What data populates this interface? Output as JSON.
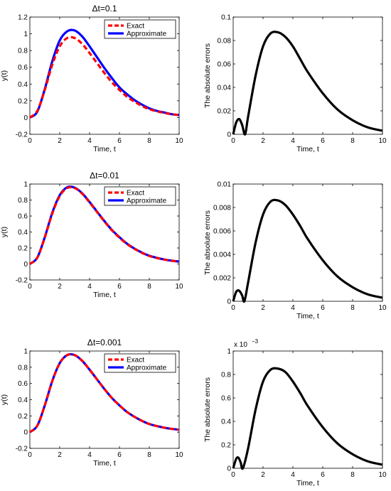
{
  "chart_data": [
    {
      "type": "line",
      "title": "Δt=0.1",
      "xlabel": "Time, t",
      "ylabel": "y(t)",
      "xlim": [
        0,
        10
      ],
      "ylim": [
        -0.2,
        1.2
      ],
      "xticks": [
        "0",
        "2",
        "4",
        "6",
        "8",
        "10"
      ],
      "yticks": [
        "-0.2",
        "0",
        "0.2",
        "0.4",
        "0.6",
        "0.8",
        "1",
        "1.2"
      ],
      "legend": {
        "position": "top-right",
        "entries": [
          "Exact",
          "Approximate"
        ]
      },
      "grid": false,
      "x": [
        0,
        0.5,
        1,
        1.5,
        2,
        2.5,
        3,
        3.5,
        4,
        4.5,
        5,
        5.5,
        6,
        6.5,
        7,
        7.5,
        8,
        8.5,
        9,
        9.5,
        10
      ],
      "series": [
        {
          "name": "Exact",
          "color": "#ff0000",
          "style": "dashed",
          "values": [
            0,
            0.08,
            0.33,
            0.63,
            0.85,
            0.95,
            0.95,
            0.88,
            0.77,
            0.65,
            0.53,
            0.42,
            0.33,
            0.25,
            0.19,
            0.14,
            0.1,
            0.075,
            0.055,
            0.04,
            0.03
          ]
        },
        {
          "name": "Approximate",
          "color": "#0000ff",
          "style": "solid",
          "values": [
            0,
            0.07,
            0.34,
            0.67,
            0.92,
            1.03,
            1.04,
            0.97,
            0.85,
            0.72,
            0.59,
            0.47,
            0.36,
            0.28,
            0.21,
            0.155,
            0.11,
            0.08,
            0.06,
            0.04,
            0.03
          ]
        }
      ]
    },
    {
      "type": "line",
      "title": "",
      "xlabel": "Time, t",
      "ylabel": "The absolute errors",
      "xlim": [
        0,
        10
      ],
      "ylim": [
        0,
        0.1
      ],
      "xticks": [
        "0",
        "2",
        "4",
        "6",
        "8",
        "10"
      ],
      "yticks": [
        "0",
        "0.02",
        "0.04",
        "0.06",
        "0.08",
        "0.1"
      ],
      "grid": false,
      "x": [
        0,
        0.2,
        0.4,
        0.6,
        0.8,
        1,
        1.5,
        2,
        2.5,
        3,
        3.5,
        4,
        4.5,
        5,
        6,
        7,
        8,
        9,
        10
      ],
      "series": [
        {
          "color": "#000000",
          "style": "solid",
          "values": [
            0,
            0.01,
            0.013,
            0.008,
            0,
            0.015,
            0.05,
            0.075,
            0.086,
            0.087,
            0.083,
            0.075,
            0.064,
            0.053,
            0.035,
            0.021,
            0.012,
            0.006,
            0.003
          ]
        }
      ]
    },
    {
      "type": "line",
      "title": "Δt=0.01",
      "xlabel": "Time, t",
      "ylabel": "y(t)",
      "xlim": [
        0,
        10
      ],
      "ylim": [
        -0.2,
        1
      ],
      "xticks": [
        "0",
        "2",
        "4",
        "6",
        "8",
        "10"
      ],
      "yticks": [
        "-0.2",
        "0",
        "0.2",
        "0.4",
        "0.6",
        "0.8",
        "1"
      ],
      "legend": {
        "position": "top-right",
        "entries": [
          "Exact",
          "Approximate"
        ]
      },
      "grid": false,
      "x": [
        0,
        0.5,
        1,
        1.5,
        2,
        2.5,
        3,
        3.5,
        4,
        4.5,
        5,
        5.5,
        6,
        6.5,
        7,
        7.5,
        8,
        8.5,
        9,
        9.5,
        10
      ],
      "series": [
        {
          "name": "Exact",
          "color": "#ff0000",
          "style": "dashed",
          "values": [
            0,
            0.08,
            0.33,
            0.63,
            0.85,
            0.95,
            0.95,
            0.88,
            0.77,
            0.65,
            0.53,
            0.42,
            0.33,
            0.25,
            0.19,
            0.14,
            0.1,
            0.075,
            0.055,
            0.04,
            0.03
          ]
        },
        {
          "name": "Approximate",
          "color": "#0000ff",
          "style": "solid",
          "values": [
            0,
            0.08,
            0.335,
            0.64,
            0.86,
            0.96,
            0.955,
            0.885,
            0.775,
            0.655,
            0.535,
            0.425,
            0.335,
            0.255,
            0.193,
            0.143,
            0.103,
            0.077,
            0.056,
            0.041,
            0.03
          ]
        }
      ]
    },
    {
      "type": "line",
      "title": "",
      "xlabel": "Time, t",
      "ylabel": "The absolute errors",
      "xlim": [
        0,
        10
      ],
      "ylim": [
        0,
        0.01
      ],
      "xticks": [
        "0",
        "2",
        "4",
        "6",
        "8",
        "10"
      ],
      "yticks": [
        "0",
        "0.002",
        "0.004",
        "0.006",
        "0.008",
        "0.01"
      ],
      "grid": false,
      "x": [
        0,
        0.2,
        0.4,
        0.6,
        0.75,
        1,
        1.5,
        2,
        2.5,
        3,
        3.5,
        4,
        4.5,
        5,
        6,
        7,
        8,
        9,
        10
      ],
      "series": [
        {
          "color": "#000000",
          "style": "solid",
          "values": [
            0,
            0.0008,
            0.0009,
            0.0005,
            0,
            0.0016,
            0.005,
            0.0074,
            0.0085,
            0.0086,
            0.0082,
            0.0074,
            0.0064,
            0.0053,
            0.0035,
            0.0021,
            0.0012,
            0.0006,
            0.0003
          ]
        }
      ]
    },
    {
      "type": "line",
      "title": "Δt=0.001",
      "xlabel": "Time, t",
      "ylabel": "y(t)",
      "xlim": [
        0,
        10
      ],
      "ylim": [
        -0.2,
        1
      ],
      "xticks": [
        "0",
        "2",
        "4",
        "6",
        "8",
        "10"
      ],
      "yticks": [
        "-0.2",
        "0",
        "0.2",
        "0.4",
        "0.6",
        "0.8",
        "1"
      ],
      "legend": {
        "position": "top-right",
        "entries": [
          "Exact",
          "Approximate"
        ]
      },
      "grid": false,
      "x": [
        0,
        0.5,
        1,
        1.5,
        2,
        2.5,
        3,
        3.5,
        4,
        4.5,
        5,
        5.5,
        6,
        6.5,
        7,
        7.5,
        8,
        8.5,
        9,
        9.5,
        10
      ],
      "series": [
        {
          "name": "Exact",
          "color": "#ff0000",
          "style": "dashed",
          "values": [
            0,
            0.08,
            0.33,
            0.63,
            0.85,
            0.95,
            0.95,
            0.88,
            0.77,
            0.65,
            0.53,
            0.42,
            0.33,
            0.25,
            0.19,
            0.14,
            0.1,
            0.075,
            0.055,
            0.04,
            0.03
          ]
        },
        {
          "name": "Approximate",
          "color": "#0000ff",
          "style": "solid",
          "values": [
            0,
            0.08,
            0.33,
            0.63,
            0.85,
            0.95,
            0.95,
            0.88,
            0.77,
            0.65,
            0.53,
            0.42,
            0.33,
            0.25,
            0.19,
            0.14,
            0.1,
            0.075,
            0.055,
            0.04,
            0.03
          ]
        }
      ]
    },
    {
      "type": "line",
      "title": "",
      "xlabel": "Time, t",
      "ylabel": "The absolute errors",
      "xlim": [
        0,
        10
      ],
      "ylim": [
        0,
        1
      ],
      "xticks": [
        "0",
        "2",
        "4",
        "6",
        "8",
        "10"
      ],
      "yticks": [
        "0",
        "0.2",
        "0.4",
        "0.6",
        "0.8",
        "1"
      ],
      "multiplier_base": "x 10",
      "multiplier_exp": "−3",
      "grid": false,
      "x": [
        0,
        0.2,
        0.35,
        0.5,
        0.65,
        1,
        1.5,
        2,
        2.5,
        3,
        3.5,
        4,
        4.5,
        5,
        6,
        7,
        8,
        9,
        10
      ],
      "series": [
        {
          "color": "#000000",
          "style": "solid",
          "values": [
            0,
            0.08,
            0.09,
            0.05,
            0,
            0.17,
            0.5,
            0.74,
            0.84,
            0.85,
            0.82,
            0.74,
            0.64,
            0.53,
            0.35,
            0.21,
            0.12,
            0.06,
            0.03
          ]
        }
      ]
    }
  ]
}
